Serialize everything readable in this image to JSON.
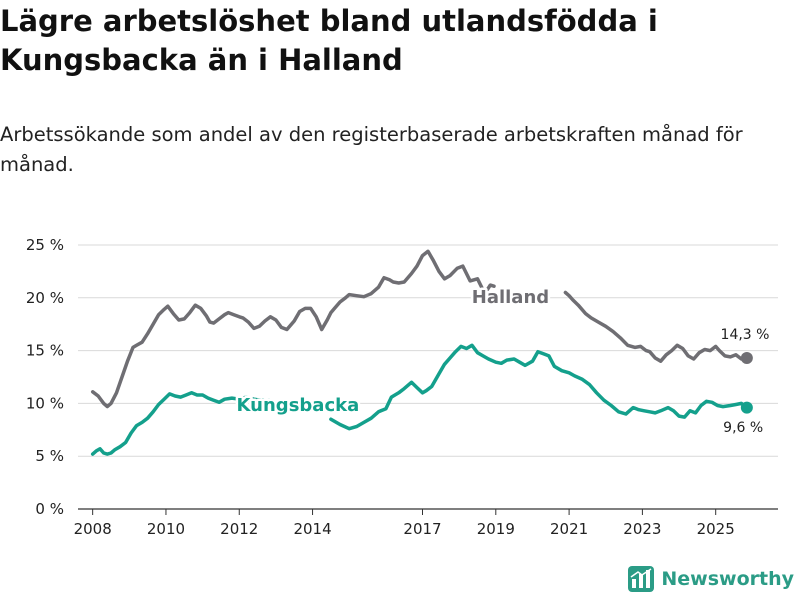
{
  "title": "Lägre arbetslöshet bland utlandsfödda i Kungsbacka än i Halland",
  "subtitle": "Arbetssökande som andel av den registerbaserade arbetskraften månad för månad.",
  "brand": {
    "name": "Newsworthy",
    "icon": "bar-chart-logo-icon",
    "color": "#2b9c86"
  },
  "chart_data": {
    "type": "line",
    "title": "Lägre arbetslöshet bland utlandsfödda i Kungsbacka än i Halland",
    "xlabel": "",
    "ylabel": "",
    "xlim": [
      2007.6,
      2026.7
    ],
    "ylim": [
      0,
      25
    ],
    "grid": true,
    "y_ticks": [
      0,
      5,
      10,
      15,
      20,
      25
    ],
    "y_tick_labels": [
      "0 %",
      "5 %",
      "10 %",
      "15 %",
      "20 %",
      "25 %"
    ],
    "x_ticks": [
      2008,
      2010,
      2012,
      2014,
      2017,
      2019,
      2021,
      2023,
      2025
    ],
    "x_tick_labels": [
      "2008",
      "2010",
      "2012",
      "2014",
      "2017",
      "2019",
      "2021",
      "2023",
      "2025"
    ],
    "series": [
      {
        "name": "Halland",
        "color": "#6f6e73",
        "end_label": "14,3 %",
        "x": [
          2008.0,
          2008.15,
          2008.3,
          2008.4,
          2008.5,
          2008.65,
          2008.8,
          2008.95,
          2009.1,
          2009.2,
          2009.35,
          2009.5,
          2009.65,
          2009.8,
          2009.95,
          2010.05,
          2010.2,
          2010.35,
          2010.5,
          2010.65,
          2010.8,
          2010.95,
          2011.1,
          2011.2,
          2011.3,
          2011.45,
          2011.6,
          2011.7,
          2011.85,
          2012.0,
          2012.1,
          2012.25,
          2012.4,
          2012.55,
          2012.7,
          2012.85,
          2013.0,
          2013.15,
          2013.3,
          2013.5,
          2013.65,
          2013.8,
          2013.95,
          2014.1,
          2014.25,
          2014.4,
          2014.5,
          2014.6,
          2014.75,
          2014.9,
          2015.0,
          2015.2,
          2015.4,
          2015.6,
          2015.8,
          2015.95,
          2016.1,
          2016.2,
          2016.35,
          2016.5,
          2016.7,
          2016.85,
          2017.0,
          2017.15,
          2017.3,
          2017.45,
          2017.6,
          2017.75,
          2017.95,
          2018.1,
          2018.3,
          2018.5,
          2018.7,
          2018.85,
          2018.95
        ],
        "values": [
          11.1,
          10.7,
          10.0,
          9.7,
          10.0,
          11.0,
          12.5,
          14.0,
          15.3,
          15.5,
          15.8,
          16.6,
          17.5,
          18.4,
          18.9,
          19.2,
          18.5,
          17.9,
          18.0,
          18.6,
          19.3,
          19.0,
          18.3,
          17.7,
          17.6,
          18.0,
          18.4,
          18.6,
          18.4,
          18.2,
          18.1,
          17.7,
          17.1,
          17.3,
          17.8,
          18.2,
          17.9,
          17.2,
          17.0,
          17.8,
          18.7,
          19.0,
          19.0,
          18.2,
          17.0,
          17.9,
          18.6,
          19.0,
          19.6,
          20.0,
          20.3,
          20.2,
          20.1,
          20.4,
          21.0,
          21.9,
          21.7,
          21.5,
          21.4,
          21.5,
          22.3,
          23.0,
          24.0,
          24.4,
          23.5,
          22.5,
          21.8,
          22.1,
          22.8,
          23.0,
          21.6,
          21.8,
          20.4,
          21.2,
          21.1
        ]
      },
      {
        "name": "Halland",
        "color": "#6f6e73",
        "x": [
          2020.9,
          2021.0,
          2021.1,
          2021.25,
          2021.45,
          2021.6,
          2021.8,
          2022.0,
          2022.2,
          2022.4,
          2022.6,
          2022.8,
          2022.95,
          2023.1,
          2023.2,
          2023.35,
          2023.5,
          2023.65,
          2023.8,
          2023.95,
          2024.1,
          2024.25,
          2024.4,
          2024.55,
          2024.7,
          2024.85,
          2025.0,
          2025.1,
          2025.25,
          2025.4,
          2025.55,
          2025.7,
          2025.85
        ],
        "values": [
          20.5,
          20.2,
          19.8,
          19.3,
          18.5,
          18.1,
          17.7,
          17.3,
          16.8,
          16.2,
          15.5,
          15.3,
          15.4,
          15.0,
          14.9,
          14.3,
          14.0,
          14.6,
          15.0,
          15.5,
          15.2,
          14.5,
          14.2,
          14.8,
          15.1,
          15.0,
          15.4,
          15.0,
          14.5,
          14.4,
          14.6,
          14.2,
          14.3
        ]
      },
      {
        "name": "Kungsbacka",
        "color": "#14a08c",
        "end_label": "9,6 %",
        "x": [
          2008.0,
          2008.1,
          2008.2,
          2008.3,
          2008.4,
          2008.5,
          2008.6,
          2008.75,
          2008.9,
          2009.05,
          2009.2,
          2009.35,
          2009.5,
          2009.65,
          2009.8,
          2009.95,
          2010.1,
          2010.25,
          2010.4,
          2010.55,
          2010.7,
          2010.85,
          2011.0,
          2011.15,
          2011.3,
          2011.45,
          2011.6,
          2011.8,
          2012.0,
          2012.2,
          2012.4,
          2012.6,
          2012.8
        ],
        "values": [
          5.2,
          5.5,
          5.7,
          5.3,
          5.2,
          5.3,
          5.6,
          5.9,
          6.3,
          7.2,
          7.9,
          8.2,
          8.6,
          9.2,
          9.9,
          10.4,
          10.9,
          10.7,
          10.6,
          10.8,
          11.0,
          10.8,
          10.8,
          10.5,
          10.3,
          10.1,
          10.4,
          10.5,
          10.4,
          10.6,
          10.4,
          10.3,
          10.3
        ]
      },
      {
        "name": "Kungsbacka",
        "color": "#14a08c",
        "x": [
          2014.5,
          2014.75,
          2015.0,
          2015.2,
          2015.4,
          2015.6,
          2015.8,
          2016.0,
          2016.15,
          2016.35,
          2016.5,
          2016.7,
          2016.85,
          2017.0,
          2017.1,
          2017.25,
          2017.45,
          2017.6,
          2017.75,
          2017.9,
          2018.05,
          2018.2,
          2018.35,
          2018.5,
          2018.65,
          2018.8,
          2019.0,
          2019.15,
          2019.3,
          2019.5,
          2019.65,
          2019.8,
          2020.0,
          2020.15,
          2020.3,
          2020.45,
          2020.6,
          2020.8,
          2021.0,
          2021.15,
          2021.35,
          2021.55,
          2021.75,
          2021.95,
          2022.15,
          2022.35,
          2022.55,
          2022.75,
          2022.9,
          2023.05,
          2023.2,
          2023.35,
          2023.5,
          2023.7,
          2023.85,
          2024.0,
          2024.15,
          2024.3,
          2024.45,
          2024.6,
          2024.75,
          2024.9,
          2025.05,
          2025.2,
          2025.4,
          2025.55,
          2025.7,
          2025.85
        ],
        "values": [
          8.5,
          8.0,
          7.6,
          7.8,
          8.2,
          8.6,
          9.2,
          9.5,
          10.6,
          11.0,
          11.4,
          12.0,
          11.5,
          11.0,
          11.2,
          11.6,
          12.8,
          13.7,
          14.3,
          14.9,
          15.4,
          15.2,
          15.5,
          14.8,
          14.5,
          14.2,
          13.9,
          13.8,
          14.1,
          14.2,
          13.9,
          13.6,
          14.0,
          14.9,
          14.7,
          14.5,
          13.5,
          13.1,
          12.9,
          12.6,
          12.3,
          11.8,
          11.0,
          10.3,
          9.8,
          9.2,
          9.0,
          9.6,
          9.4,
          9.3,
          9.2,
          9.1,
          9.3,
          9.6,
          9.3,
          8.8,
          8.7,
          9.3,
          9.1,
          9.8,
          10.2,
          10.1,
          9.8,
          9.7,
          9.8,
          9.9,
          10.0,
          9.6
        ]
      }
    ],
    "annotations": [
      {
        "text": "Halland",
        "x": 2019.4,
        "y": 19.5,
        "color": "#6f6e73"
      },
      {
        "text": "Kungsbacka",
        "x": 2013.6,
        "y": 9.3,
        "color": "#14a08c"
      }
    ],
    "end_points": [
      {
        "series": "Halland",
        "x": 2025.85,
        "y": 14.3,
        "label": "14,3 %",
        "label_x": 2025.8,
        "label_y": 16.1
      },
      {
        "series": "Kungsbacka",
        "x": 2025.85,
        "y": 9.6,
        "label": "9,6 %",
        "label_x": 2025.75,
        "label_y": 7.3
      }
    ]
  }
}
